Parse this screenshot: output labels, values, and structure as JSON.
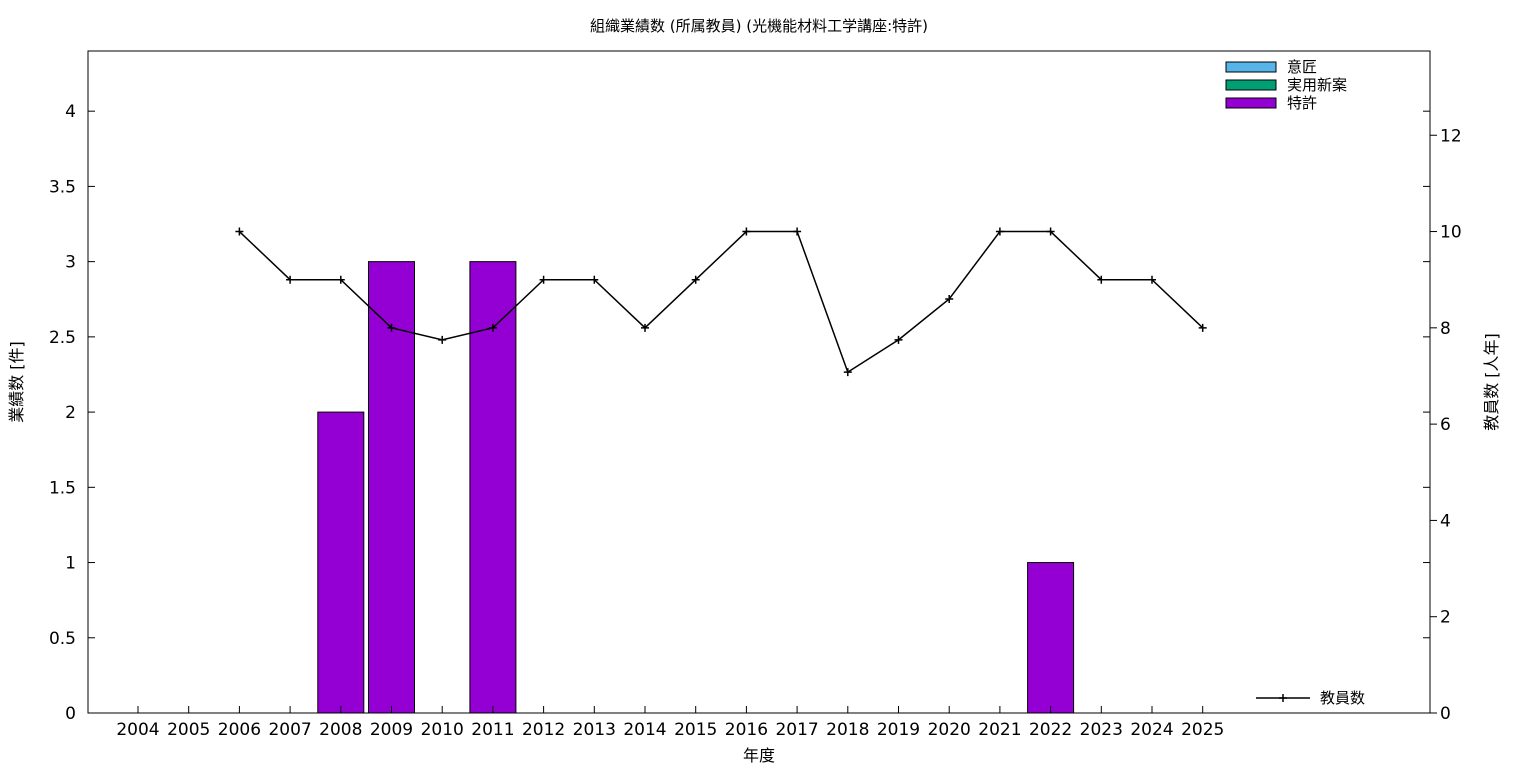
{
  "chart_data": {
    "type": "bar",
    "title": "組織業績数 (所属教員) (光機能材料工学講座:特許)",
    "xlabel": "年度",
    "ylabel": "業績数 [件]",
    "y2label": "教員数 [人年]",
    "categories": [
      "2004",
      "2005",
      "2006",
      "2007",
      "2008",
      "2009",
      "2010",
      "2011",
      "2012",
      "2013",
      "2014",
      "2015",
      "2016",
      "2017",
      "2018",
      "2019",
      "2020",
      "2021",
      "2022",
      "2023",
      "2024",
      "2025"
    ],
    "ylim": [
      0,
      4.4
    ],
    "y_ticks": [
      "0",
      "0.5",
      "1",
      "1.5",
      "2",
      "2.5",
      "3",
      "3.5",
      "4"
    ],
    "y2lim": [
      0,
      13.75
    ],
    "y2_ticks": [
      "0",
      "2",
      "4",
      "6",
      "8",
      "10",
      "12"
    ],
    "grid": false,
    "legend_position": "top-right",
    "series": [
      {
        "name": "意匠",
        "kind": "bar",
        "color": "#56b4e9",
        "values": [
          0,
          0,
          0,
          0,
          0,
          0,
          0,
          0,
          0,
          0,
          0,
          0,
          0,
          0,
          0,
          0,
          0,
          0,
          0,
          0,
          0,
          0
        ]
      },
      {
        "name": "実用新案",
        "kind": "bar",
        "color": "#009e73",
        "values": [
          0,
          0,
          0,
          0,
          0,
          0,
          0,
          0,
          0,
          0,
          0,
          0,
          0,
          0,
          0,
          0,
          0,
          0,
          0,
          0,
          0,
          0
        ]
      },
      {
        "name": "特許",
        "kind": "bar",
        "color": "#9400d3",
        "values": [
          0,
          0,
          0,
          0,
          2,
          3,
          0,
          3,
          0,
          0,
          0,
          0,
          0,
          0,
          0,
          0,
          0,
          0,
          1,
          0,
          0,
          0
        ]
      },
      {
        "name": "教員数",
        "kind": "line",
        "axis": "y2",
        "color": "#000000",
        "values": [
          null,
          null,
          10,
          9,
          9,
          8,
          7.75,
          8,
          9,
          9,
          8,
          9,
          10,
          10,
          7.08,
          7.75,
          8.6,
          10,
          10,
          9,
          9,
          8
        ]
      }
    ]
  }
}
